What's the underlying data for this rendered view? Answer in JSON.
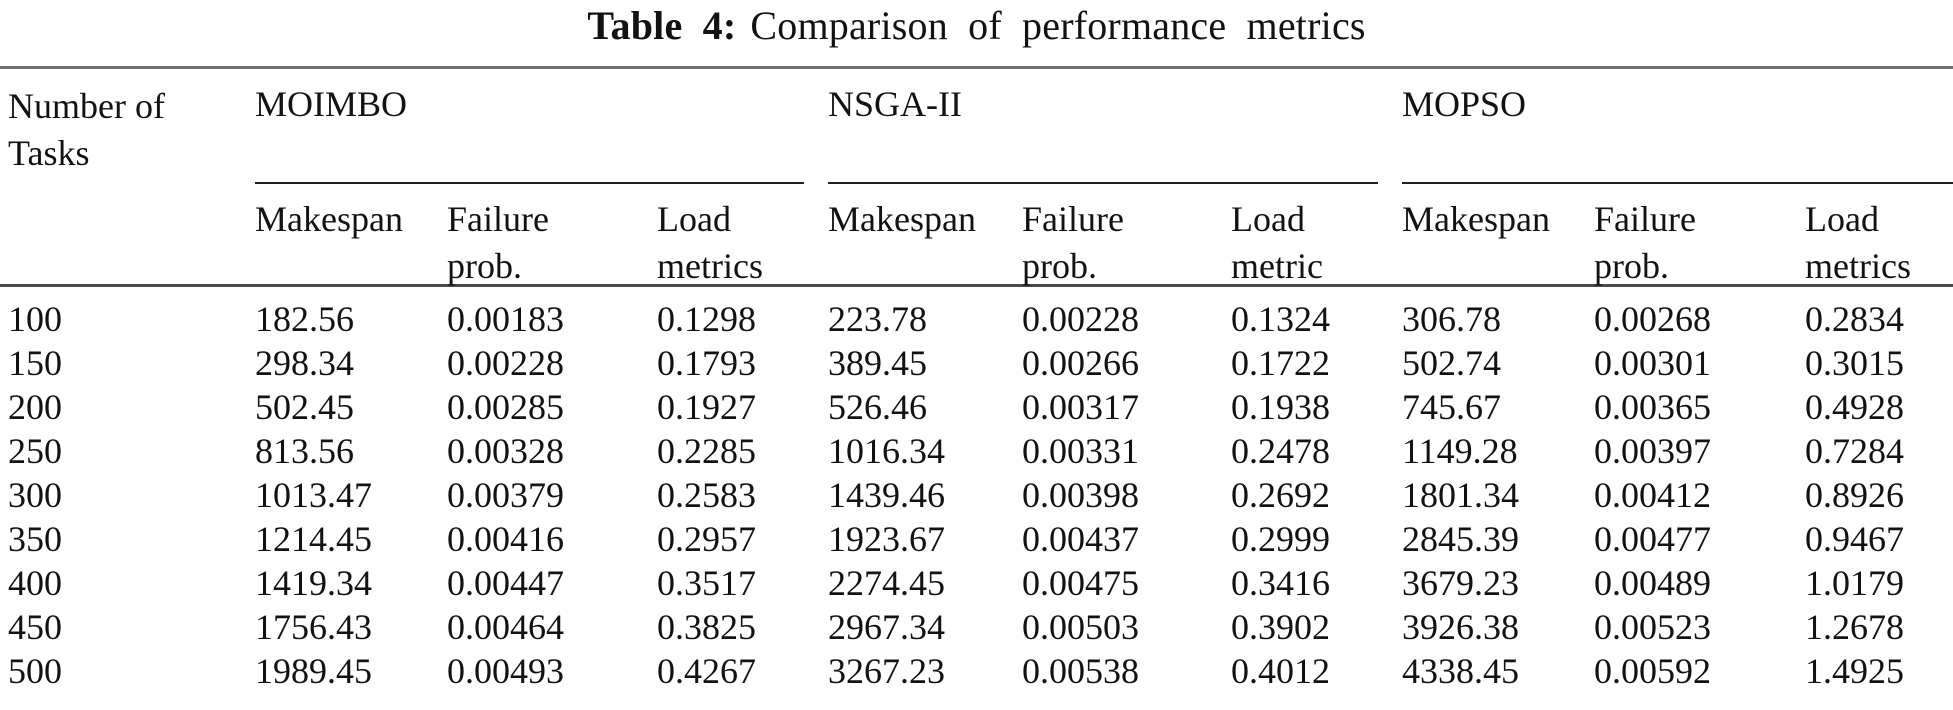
{
  "title": {
    "label": "Table 4:",
    "text": "Comparison of performance metrics"
  },
  "table": {
    "row_header": "Number of Tasks",
    "groups": [
      {
        "name": "MOIMBO",
        "columns": [
          "Makespan",
          "Failure prob.",
          "Load metrics"
        ]
      },
      {
        "name": "NSGA-II",
        "columns": [
          "Makespan",
          "Failure prob.",
          "Load metric"
        ]
      },
      {
        "name": "MOPSO",
        "columns": [
          "Makespan",
          "Failure prob.",
          "Load metrics"
        ]
      }
    ],
    "rows": [
      {
        "tasks": "100",
        "values": [
          "182.56",
          "0.00183",
          "0.1298",
          "223.78",
          "0.00228",
          "0.1324",
          "306.78",
          "0.00268",
          "0.2834"
        ]
      },
      {
        "tasks": "150",
        "values": [
          "298.34",
          "0.00228",
          "0.1793",
          "389.45",
          "0.00266",
          "0.1722",
          "502.74",
          "0.00301",
          "0.3015"
        ]
      },
      {
        "tasks": "200",
        "values": [
          "502.45",
          "0.00285",
          "0.1927",
          "526.46",
          "0.00317",
          "0.1938",
          "745.67",
          "0.00365",
          "0.4928"
        ]
      },
      {
        "tasks": "250",
        "values": [
          "813.56",
          "0.00328",
          "0.2285",
          "1016.34",
          "0.00331",
          "0.2478",
          "1149.28",
          "0.00397",
          "0.7284"
        ]
      },
      {
        "tasks": "300",
        "values": [
          "1013.47",
          "0.00379",
          "0.2583",
          "1439.46",
          "0.00398",
          "0.2692",
          "1801.34",
          "0.00412",
          "0.8926"
        ]
      },
      {
        "tasks": "350",
        "values": [
          "1214.45",
          "0.00416",
          "0.2957",
          "1923.67",
          "0.00437",
          "0.2999",
          "2845.39",
          "0.00477",
          "0.9467"
        ]
      },
      {
        "tasks": "400",
        "values": [
          "1419.34",
          "0.00447",
          "0.3517",
          "2274.45",
          "0.00475",
          "0.3416",
          "3679.23",
          "0.00489",
          "1.0179"
        ]
      },
      {
        "tasks": "450",
        "values": [
          "1756.43",
          "0.00464",
          "0.3825",
          "2967.34",
          "0.00503",
          "0.3902",
          "3926.38",
          "0.00523",
          "1.2678"
        ]
      },
      {
        "tasks": "500",
        "values": [
          "1989.45",
          "0.00493",
          "0.4267",
          "3267.23",
          "0.00538",
          "0.4012",
          "4338.45",
          "0.00592",
          "1.4925"
        ]
      }
    ]
  },
  "colors": {
    "text": "#121212",
    "rule_outer": "#6f6f6f",
    "rule_inner": "#1e1e1e"
  }
}
